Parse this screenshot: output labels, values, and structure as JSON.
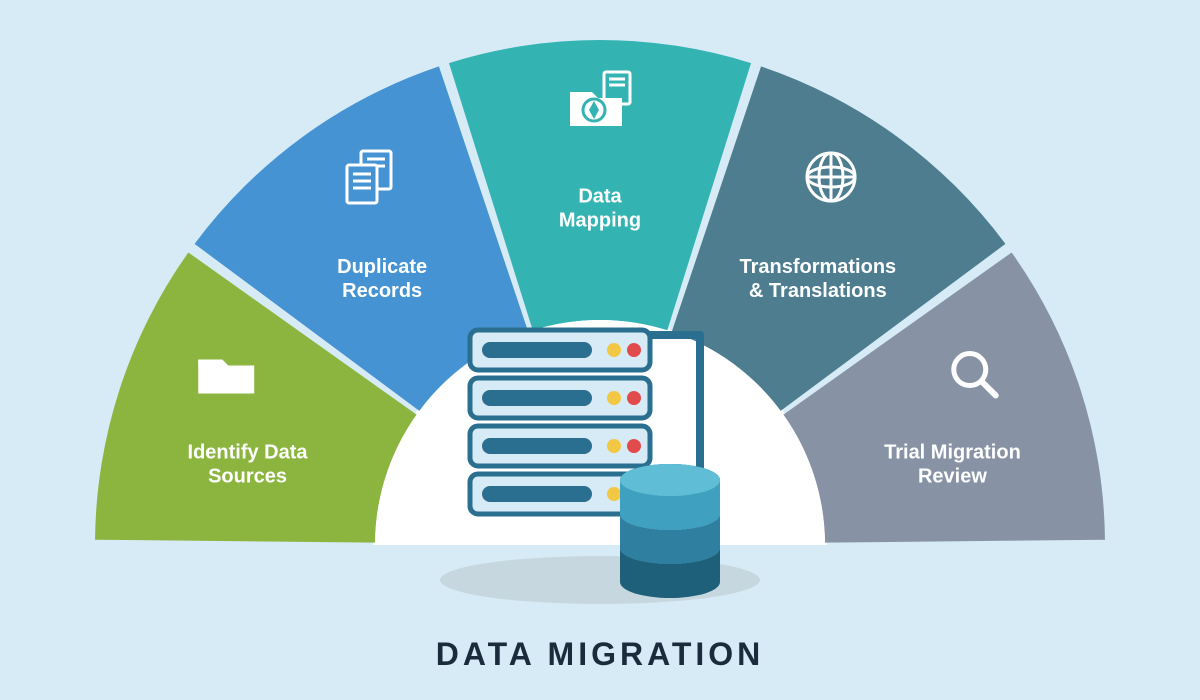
{
  "title": "DATA MIGRATION",
  "background_color": "#d6ebf5",
  "inner_background": "#ffffff",
  "shadow_color": "#c7d7df",
  "title_color": "#1a2b3c",
  "title_fontsize": 32,
  "label_fontsize": 20,
  "label_color": "#ffffff",
  "icon_color": "#ffffff",
  "center": {
    "server_outline": "#2a6f8f",
    "server_fill": "#d6ebf5",
    "bar_fill": "#2a6f8f",
    "led_green": "#f2c744",
    "led_red": "#e24b4b",
    "db_top": "#3fa1bf",
    "db_mid": "#2f7fa0",
    "db_dark": "#1e5f7a"
  },
  "segments": [
    {
      "id": "identify-data-sources",
      "label_lines": [
        "Identify Data",
        "Sources"
      ],
      "color": "#8bb53e",
      "icon": "folder"
    },
    {
      "id": "duplicate-records",
      "label_lines": [
        "Duplicate",
        "Records"
      ],
      "color": "#4593d2",
      "icon": "documents"
    },
    {
      "id": "data-mapping",
      "label_lines": [
        "Data",
        "Mapping"
      ],
      "color": "#34b3b3",
      "icon": "mapping"
    },
    {
      "id": "transformations-translations",
      "label_lines": [
        "Transformations",
        "& Translations"
      ],
      "color": "#4d7d8f",
      "icon": "globe"
    },
    {
      "id": "trial-migration-review",
      "label_lines": [
        "Trial Migration",
        "Review"
      ],
      "color": "#8793a5",
      "icon": "magnifier"
    }
  ]
}
